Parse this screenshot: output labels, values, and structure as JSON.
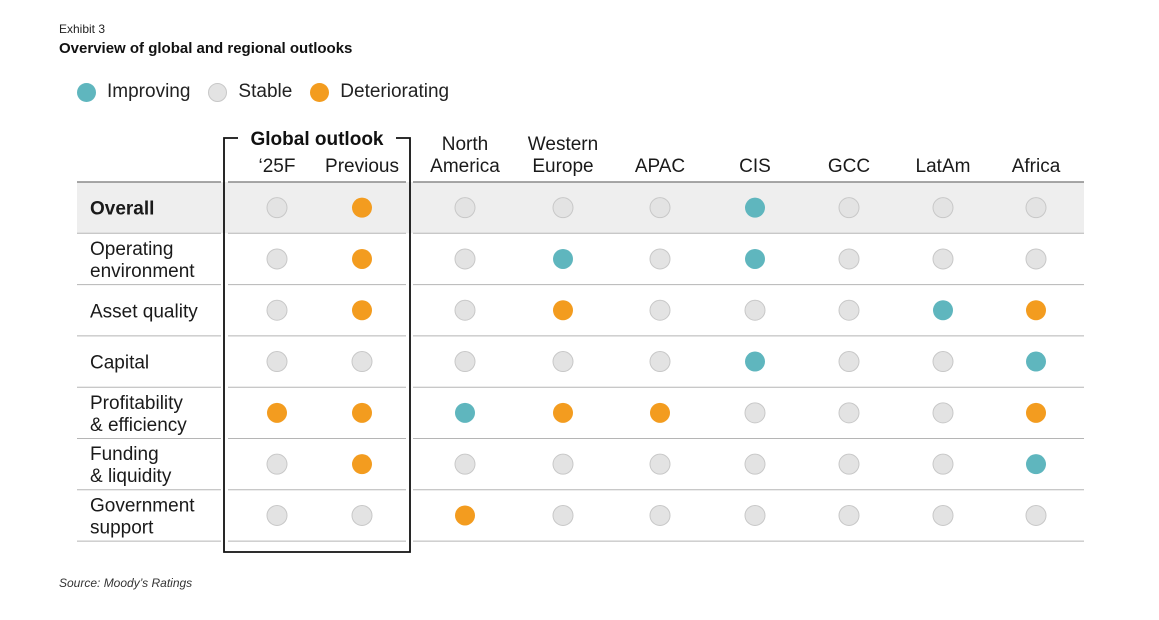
{
  "exhibit_label": "Exhibit 3",
  "title": "Overview of global and regional outlooks",
  "source": "Source: Moody’s Ratings",
  "colors": {
    "Improving": "#5fb6be",
    "Stable": "#e3e3e3",
    "Deteriorating": "#f39c1f",
    "stable_border": "#c8c8c8",
    "overall_band": "#eeeeee",
    "rule": "#b5b5b5"
  },
  "legend": [
    {
      "label": "Improving",
      "status": "Improving"
    },
    {
      "label": "Stable",
      "status": "Stable"
    },
    {
      "label": "Deteriorating",
      "status": "Deteriorating"
    }
  ],
  "chart_data": {
    "type": "table",
    "global_group_label": "Global outlook",
    "columns": [
      {
        "label": [
          "‘25F"
        ],
        "group": "global"
      },
      {
        "label": [
          "Previous"
        ],
        "group": "global"
      },
      {
        "label": [
          "North",
          "America"
        ]
      },
      {
        "label": [
          "Western",
          "Europe"
        ]
      },
      {
        "label": [
          "APAC"
        ]
      },
      {
        "label": [
          "CIS"
        ]
      },
      {
        "label": [
          "GCC"
        ]
      },
      {
        "label": [
          "LatAm"
        ]
      },
      {
        "label": [
          "Africa"
        ]
      }
    ],
    "rows": [
      {
        "label": [
          "Overall"
        ],
        "bold": true,
        "values": [
          "Stable",
          "Deteriorating",
          "Stable",
          "Stable",
          "Stable",
          "Improving",
          "Stable",
          "Stable",
          "Stable"
        ]
      },
      {
        "label": [
          "Operating",
          "environment"
        ],
        "values": [
          "Stable",
          "Deteriorating",
          "Stable",
          "Improving",
          "Stable",
          "Improving",
          "Stable",
          "Stable",
          "Stable"
        ]
      },
      {
        "label": [
          "Asset quality"
        ],
        "values": [
          "Stable",
          "Deteriorating",
          "Stable",
          "Deteriorating",
          "Stable",
          "Stable",
          "Stable",
          "Improving",
          "Deteriorating"
        ]
      },
      {
        "label": [
          "Capital"
        ],
        "values": [
          "Stable",
          "Stable",
          "Stable",
          "Stable",
          "Stable",
          "Improving",
          "Stable",
          "Stable",
          "Improving"
        ]
      },
      {
        "label": [
          "Profitability",
          "& efficiency"
        ],
        "values": [
          "Deteriorating",
          "Deteriorating",
          "Improving",
          "Deteriorating",
          "Deteriorating",
          "Stable",
          "Stable",
          "Stable",
          "Deteriorating"
        ]
      },
      {
        "label": [
          "Funding",
          "& liquidity"
        ],
        "values": [
          "Stable",
          "Deteriorating",
          "Stable",
          "Stable",
          "Stable",
          "Stable",
          "Stable",
          "Stable",
          "Improving"
        ]
      },
      {
        "label": [
          "Government",
          "support"
        ],
        "values": [
          "Stable",
          "Stable",
          "Deteriorating",
          "Stable",
          "Stable",
          "Stable",
          "Stable",
          "Stable",
          "Stable"
        ]
      }
    ]
  }
}
